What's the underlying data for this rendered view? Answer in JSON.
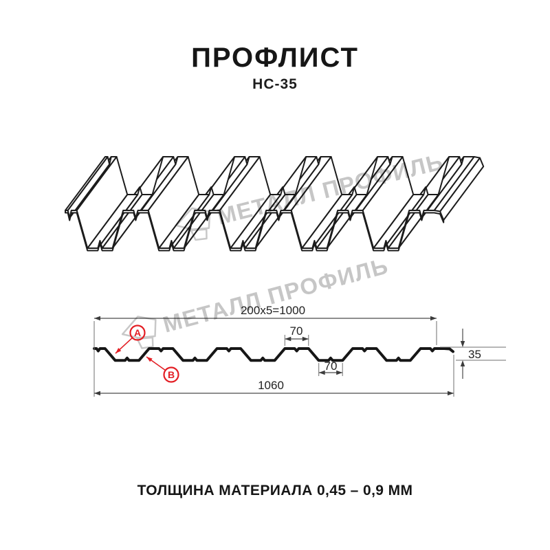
{
  "header": {
    "title": "ПРОФЛИСТ",
    "subtitle": "НС-35"
  },
  "watermark": {
    "text": "МЕТАЛЛ ПРОФИЛЬ",
    "color": "#c6c6c6"
  },
  "cross_section": {
    "dim_top_pitch": "200x5=1000",
    "dim_crest_width": "70",
    "dim_valley_width": "70",
    "dim_height": "35",
    "dim_total_width": "1060",
    "marker_a": "А",
    "marker_b": "В",
    "accent_color": "#e31e24",
    "line_color": "#161616"
  },
  "footer": {
    "text": "ТОЛЩИНА МАТЕРИАЛА 0,45 – 0,9 ММ"
  }
}
